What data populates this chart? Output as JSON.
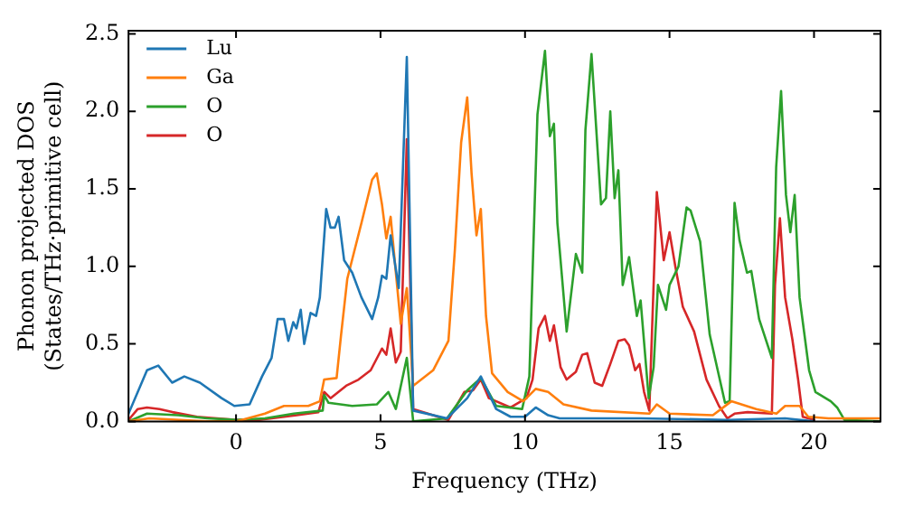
{
  "chart_data": {
    "type": "line",
    "xlabel": "Frequency (THz)",
    "ylabel": "Phonon projected DOS\n(States/THz·primitive cell)",
    "xlim": [
      -3.72,
      22.3
    ],
    "ylim": [
      0,
      2.52
    ],
    "xticks": [
      0,
      5,
      10,
      15,
      20
    ],
    "yticks": [
      {
        "value": 0,
        "label": "0.0"
      },
      {
        "value": 0.5,
        "label": "0.5"
      },
      {
        "value": 1,
        "label": "1.0"
      },
      {
        "value": 1.5,
        "label": "1.5"
      },
      {
        "value": 2,
        "label": "2.0"
      },
      {
        "value": 2.5,
        "label": "2.5"
      }
    ],
    "grid": false,
    "legend": "top left",
    "marker": "none",
    "line_style": "solid",
    "series": [
      {
        "name": "Lu",
        "color": "#1f77b4",
        "x": [
          -3.72,
          -3.08,
          -2.69,
          -2.21,
          -1.79,
          -1.25,
          -0.5,
          -0.06,
          0.47,
          0.9,
          1.23,
          1.44,
          1.66,
          1.81,
          1.98,
          2.09,
          2.24,
          2.36,
          2.58,
          2.77,
          2.9,
          3.12,
          3.27,
          3.42,
          3.55,
          3.74,
          4.02,
          4.34,
          4.71,
          4.92,
          5.05,
          5.2,
          5.35,
          5.63,
          5.91,
          6.13,
          7.3,
          8.0,
          8.47,
          9.0,
          9.5,
          10.0,
          10.37,
          10.8,
          11.2,
          14,
          17,
          19,
          20
        ],
        "values": [
          0.05,
          0.33,
          0.36,
          0.25,
          0.29,
          0.25,
          0.15,
          0.1,
          0.11,
          0.29,
          0.41,
          0.66,
          0.66,
          0.52,
          0.64,
          0.6,
          0.72,
          0.5,
          0.7,
          0.68,
          0.8,
          1.37,
          1.25,
          1.25,
          1.32,
          1.04,
          0.96,
          0.8,
          0.66,
          0.8,
          0.94,
          0.92,
          1.2,
          0.86,
          2.35,
          0.07,
          0.02,
          0.15,
          0.29,
          0.08,
          0.03,
          0.03,
          0.09,
          0.04,
          0.02,
          0.02,
          0.01,
          0.02,
          0.0
        ]
      },
      {
        "name": "Ga",
        "color": "#ff7f0e",
        "x": [
          -3.72,
          -3.0,
          -1.0,
          0.0,
          1.0,
          1.66,
          2.5,
          2.9,
          3.05,
          3.48,
          3.63,
          3.85,
          4.34,
          4.71,
          4.87,
          5.05,
          5.2,
          5.35,
          5.53,
          5.7,
          5.91,
          6.13,
          6.82,
          7.35,
          7.57,
          7.79,
          8.0,
          8.15,
          8.32,
          8.47,
          8.65,
          8.86,
          9.4,
          9.94,
          10.37,
          10.8,
          11.33,
          12.3,
          14.3,
          14.56,
          15.0,
          16.5,
          17.14,
          18.0,
          18.7,
          19.0,
          19.5,
          19.8,
          20.5,
          22.3
        ],
        "values": [
          0.0,
          0.02,
          0.0,
          0.0,
          0.05,
          0.1,
          0.1,
          0.13,
          0.27,
          0.28,
          0.55,
          0.92,
          1.28,
          1.56,
          1.6,
          1.4,
          1.18,
          1.32,
          0.96,
          0.63,
          0.86,
          0.23,
          0.33,
          0.52,
          1.1,
          1.8,
          2.09,
          1.6,
          1.2,
          1.37,
          0.68,
          0.31,
          0.19,
          0.13,
          0.21,
          0.19,
          0.11,
          0.07,
          0.05,
          0.11,
          0.05,
          0.04,
          0.13,
          0.08,
          0.05,
          0.1,
          0.1,
          0.03,
          0.02,
          0.02
        ]
      },
      {
        "name": "O",
        "color": "#2ca02c",
        "x": [
          -3.72,
          -3.08,
          -2.0,
          -1.0,
          0.0,
          1.0,
          2.0,
          3.0,
          3.05,
          3.2,
          4.02,
          4.87,
          5.27,
          5.53,
          5.91,
          6.13,
          7.3,
          8.0,
          8.47,
          9.0,
          9.9,
          10.15,
          10.43,
          10.69,
          10.86,
          11.0,
          11.12,
          11.44,
          11.76,
          11.98,
          12.09,
          12.3,
          12.63,
          12.8,
          12.95,
          13.1,
          13.23,
          13.38,
          13.6,
          13.87,
          14.0,
          14.28,
          14.45,
          14.6,
          14.88,
          15.0,
          15.31,
          15.59,
          15.73,
          16.06,
          16.39,
          16.92,
          17.08,
          17.25,
          17.42,
          17.68,
          17.83,
          18.1,
          18.54,
          18.69,
          18.86,
          19.03,
          19.18,
          19.33,
          19.5,
          19.83,
          20.05,
          20.58,
          20.8,
          21.05,
          22.3
        ],
        "values": [
          0.0,
          0.05,
          0.04,
          0.02,
          0.01,
          0.02,
          0.05,
          0.07,
          0.17,
          0.12,
          0.1,
          0.11,
          0.19,
          0.08,
          0.41,
          0.0,
          0.02,
          0.2,
          0.28,
          0.1,
          0.08,
          0.29,
          1.98,
          2.39,
          1.84,
          1.92,
          1.28,
          0.58,
          1.08,
          0.96,
          1.88,
          2.37,
          1.4,
          1.44,
          2.0,
          1.44,
          1.62,
          0.88,
          1.06,
          0.68,
          0.78,
          0.15,
          0.35,
          0.88,
          0.72,
          0.88,
          1.0,
          1.38,
          1.36,
          1.16,
          0.56,
          0.12,
          0.13,
          1.41,
          1.17,
          0.96,
          0.97,
          0.66,
          0.41,
          1.64,
          2.13,
          1.46,
          1.22,
          1.46,
          0.8,
          0.33,
          0.19,
          0.13,
          0.09,
          0.01,
          0.0
        ]
      },
      {
        "name": "O",
        "color": "#d62728",
        "x": [
          -3.72,
          -3.4,
          -3.08,
          -2.65,
          -2.2,
          -1.35,
          0.0,
          0.8,
          2.1,
          2.85,
          3.05,
          3.27,
          3.81,
          4.24,
          4.66,
          5.05,
          5.2,
          5.35,
          5.53,
          5.7,
          5.91,
          6.13,
          7.35,
          7.9,
          8.2,
          8.47,
          8.75,
          9.5,
          10.05,
          10.26,
          10.47,
          10.69,
          10.86,
          11.0,
          11.23,
          11.44,
          11.76,
          11.98,
          12.15,
          12.41,
          12.67,
          12.95,
          13.23,
          13.45,
          13.6,
          13.81,
          13.96,
          14.12,
          14.3,
          14.56,
          14.8,
          15.0,
          15.2,
          15.46,
          15.85,
          16.28,
          16.71,
          17.0,
          17.25,
          17.7,
          18.54,
          18.65,
          18.82,
          19.0,
          19.25,
          19.45,
          19.61,
          20.0
        ],
        "values": [
          0.01,
          0.08,
          0.09,
          0.08,
          0.06,
          0.03,
          0.01,
          0.01,
          0.04,
          0.06,
          0.19,
          0.15,
          0.23,
          0.27,
          0.33,
          0.47,
          0.43,
          0.6,
          0.38,
          0.45,
          1.82,
          0.08,
          0.01,
          0.19,
          0.2,
          0.27,
          0.15,
          0.09,
          0.15,
          0.27,
          0.6,
          0.68,
          0.52,
          0.62,
          0.35,
          0.27,
          0.32,
          0.43,
          0.44,
          0.25,
          0.23,
          0.37,
          0.52,
          0.53,
          0.49,
          0.33,
          0.37,
          0.19,
          0.07,
          1.48,
          1.04,
          1.22,
          1.0,
          0.74,
          0.58,
          0.27,
          0.1,
          0.02,
          0.05,
          0.06,
          0.05,
          0.88,
          1.31,
          0.8,
          0.53,
          0.27,
          0.03,
          0.01
        ]
      }
    ]
  }
}
